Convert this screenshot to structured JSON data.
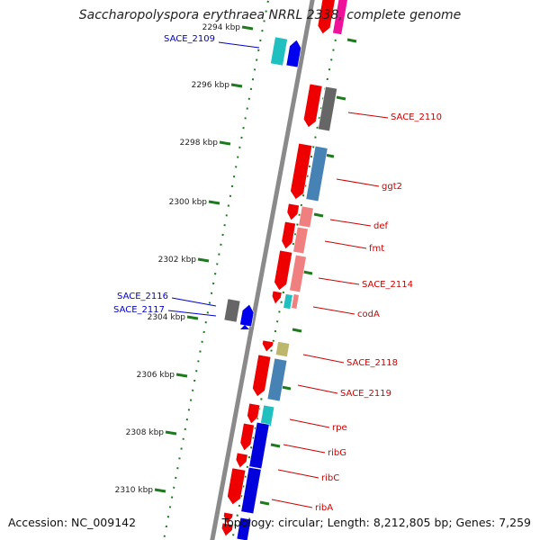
{
  "title": "Saccharopolyspora erythraea NRRL 2338, complete genome",
  "footer": {
    "accession": "Accession: NC_009142",
    "summary": "Topology: circular; Length: 8,212,805 bp; Genes: 7,259"
  },
  "axis": {
    "unit": "kbp",
    "ticks": [
      "2294 kbp",
      "2296 kbp",
      "2298 kbp",
      "2300 kbp",
      "2302 kbp",
      "2304 kbp",
      "2306 kbp",
      "2308 kbp",
      "2310 kbp"
    ]
  },
  "genes": [
    {
      "name": "SACE_2109",
      "strand": "minus",
      "color": "#0000cc"
    },
    {
      "name": "SACE_2110",
      "strand": "plus",
      "color": "#cc0000"
    },
    {
      "name": "ggt2",
      "strand": "plus",
      "color": "#cc0000"
    },
    {
      "name": "def",
      "strand": "plus",
      "color": "#cc0000"
    },
    {
      "name": "fmt",
      "strand": "plus",
      "color": "#cc0000"
    },
    {
      "name": "SACE_2114",
      "strand": "plus",
      "color": "#cc0000"
    },
    {
      "name": "codA",
      "strand": "plus",
      "color": "#cc0000"
    },
    {
      "name": "SACE_2116",
      "strand": "minus",
      "color": "#0000cc"
    },
    {
      "name": "SACE_2117",
      "strand": "minus",
      "color": "#0000cc"
    },
    {
      "name": "SACE_2118",
      "strand": "plus",
      "color": "#cc0000"
    },
    {
      "name": "SACE_2119",
      "strand": "plus",
      "color": "#cc0000"
    },
    {
      "name": "rpe",
      "strand": "plus",
      "color": "#cc0000"
    },
    {
      "name": "ribG",
      "strand": "plus",
      "color": "#cc0000"
    },
    {
      "name": "ribC",
      "strand": "plus",
      "color": "#cc0000"
    },
    {
      "name": "ribA",
      "strand": "plus",
      "color": "#cc0000"
    }
  ],
  "colors": {
    "backbone": "#8a8a8a",
    "tick": "#1f7a1f",
    "plus_gene": "#ee0000",
    "minus_gene": "#0000ee",
    "cog_gray": "#666666",
    "cog_steelblue": "#4682b4",
    "cog_salmon": "#f08080",
    "cog_cyan": "#20c0c0",
    "cog_blue": "#0000dd",
    "cog_olive": "#bdb76b",
    "cog_magenta": "#ee1199"
  }
}
